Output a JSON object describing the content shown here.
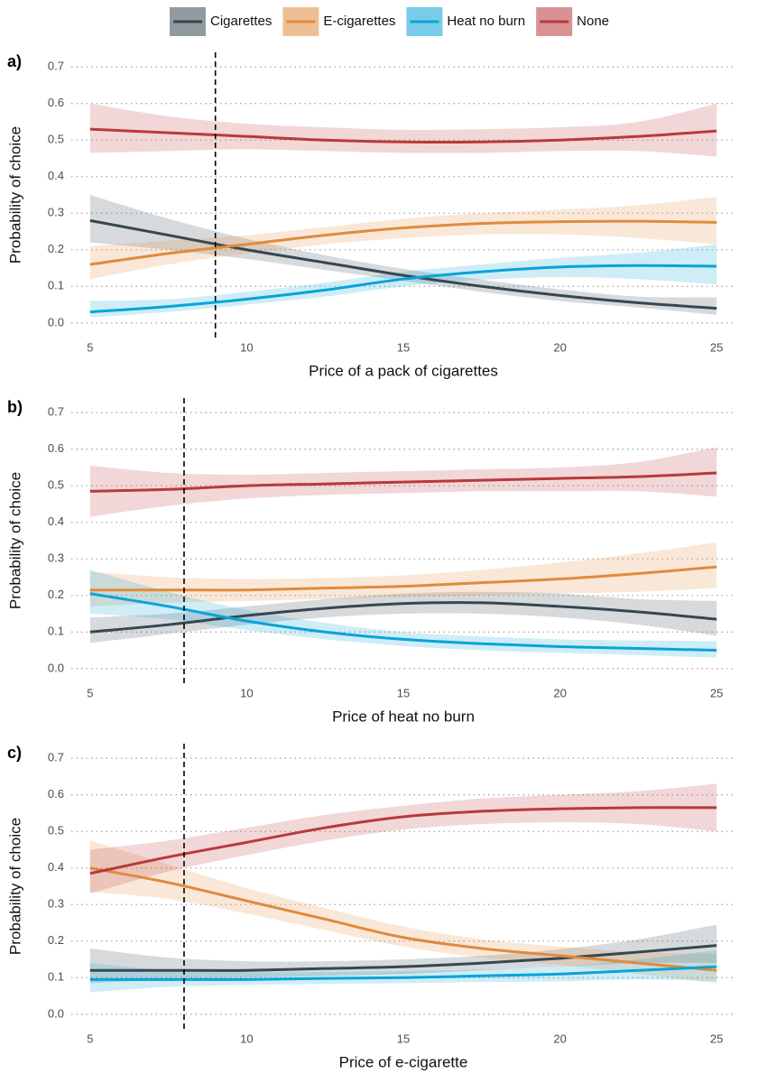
{
  "legend": {
    "position": "top",
    "items": [
      {
        "name": "Cigarettes",
        "color": "#37474f"
      },
      {
        "name": "E-cigarettes",
        "color": "#e08a3c"
      },
      {
        "name": "Heat no burn",
        "color": "#0aa3d8"
      },
      {
        "name": "None",
        "color": "#b8393b"
      }
    ]
  },
  "chart_data": [
    {
      "type": "line",
      "panel_label": "a)",
      "xlabel": "Price of a pack of cigarettes",
      "ylabel": "Probability of choice",
      "x": [
        5,
        7.5,
        10,
        12.5,
        15,
        17.5,
        20,
        22.5,
        25
      ],
      "xlim": [
        4.4,
        25.6
      ],
      "xticks": [
        5,
        10,
        15,
        20,
        25
      ],
      "ylim": [
        -0.035,
        0.735
      ],
      "yticks": [
        {
          "value": 0,
          "label": "0.0"
        },
        0.1,
        0.2,
        0.3,
        0.4,
        0.5,
        0.6,
        0.7
      ],
      "grid": true,
      "vline": 9,
      "series": [
        {
          "values": [
            0.28,
            0.24,
            0.2,
            0.165,
            0.13,
            0.1,
            0.075,
            0.055,
            0.04
          ],
          "lower": [
            0.22,
            0.2,
            0.175,
            0.145,
            0.115,
            0.085,
            0.06,
            0.042,
            0.022
          ],
          "upper": [
            0.35,
            0.285,
            0.23,
            0.185,
            0.148,
            0.118,
            0.092,
            0.072,
            0.07
          ]
        },
        {
          "values": [
            0.16,
            0.19,
            0.215,
            0.24,
            0.26,
            0.272,
            0.277,
            0.278,
            0.275
          ],
          "lower": [
            0.12,
            0.16,
            0.19,
            0.215,
            0.232,
            0.242,
            0.242,
            0.232,
            0.215
          ],
          "upper": [
            0.21,
            0.225,
            0.24,
            0.262,
            0.285,
            0.3,
            0.31,
            0.322,
            0.345
          ]
        },
        {
          "values": [
            0.03,
            0.045,
            0.065,
            0.09,
            0.12,
            0.14,
            0.153,
            0.157,
            0.155
          ],
          "lower": [
            0.015,
            0.03,
            0.05,
            0.072,
            0.1,
            0.118,
            0.125,
            0.12,
            0.105
          ],
          "upper": [
            0.06,
            0.065,
            0.085,
            0.11,
            0.14,
            0.16,
            0.178,
            0.192,
            0.215
          ]
        },
        {
          "values": [
            0.53,
            0.52,
            0.51,
            0.5,
            0.495,
            0.495,
            0.5,
            0.51,
            0.525
          ],
          "lower": [
            0.465,
            0.47,
            0.475,
            0.47,
            0.465,
            0.465,
            0.47,
            0.47,
            0.455
          ],
          "upper": [
            0.6,
            0.565,
            0.545,
            0.535,
            0.528,
            0.53,
            0.535,
            0.55,
            0.6
          ]
        }
      ]
    },
    {
      "type": "line",
      "panel_label": "b)",
      "xlabel": "Price of heat no burn",
      "ylabel": "Probability of choice",
      "x": [
        5,
        7.5,
        10,
        12.5,
        15,
        17.5,
        20,
        22.5,
        25
      ],
      "xlim": [
        4.4,
        25.6
      ],
      "xticks": [
        5,
        10,
        15,
        20,
        25
      ],
      "ylim": [
        -0.035,
        0.735
      ],
      "yticks": [
        {
          "value": 0,
          "label": "0.0"
        },
        0.1,
        0.2,
        0.3,
        0.4,
        0.5,
        0.6,
        0.7
      ],
      "grid": true,
      "vline": 8,
      "series": [
        {
          "values": [
            0.1,
            0.12,
            0.145,
            0.165,
            0.178,
            0.18,
            0.17,
            0.155,
            0.135
          ],
          "lower": [
            0.07,
            0.095,
            0.12,
            0.14,
            0.15,
            0.15,
            0.14,
            0.12,
            0.09
          ],
          "upper": [
            0.14,
            0.15,
            0.17,
            0.19,
            0.205,
            0.21,
            0.205,
            0.19,
            0.185
          ]
        },
        {
          "values": [
            0.215,
            0.215,
            0.215,
            0.22,
            0.225,
            0.235,
            0.245,
            0.26,
            0.278
          ],
          "lower": [
            0.17,
            0.18,
            0.185,
            0.19,
            0.195,
            0.2,
            0.205,
            0.21,
            0.22
          ],
          "upper": [
            0.265,
            0.25,
            0.245,
            0.248,
            0.255,
            0.27,
            0.29,
            0.315,
            0.345
          ]
        },
        {
          "values": [
            0.205,
            0.17,
            0.13,
            0.1,
            0.08,
            0.068,
            0.06,
            0.055,
            0.05
          ],
          "lower": [
            0.15,
            0.135,
            0.105,
            0.08,
            0.062,
            0.05,
            0.043,
            0.037,
            0.03
          ],
          "upper": [
            0.27,
            0.21,
            0.16,
            0.125,
            0.1,
            0.088,
            0.08,
            0.077,
            0.075
          ]
        },
        {
          "values": [
            0.485,
            0.49,
            0.5,
            0.505,
            0.51,
            0.515,
            0.52,
            0.525,
            0.535
          ],
          "lower": [
            0.415,
            0.445,
            0.465,
            0.475,
            0.48,
            0.485,
            0.485,
            0.485,
            0.47
          ],
          "upper": [
            0.555,
            0.535,
            0.53,
            0.535,
            0.54,
            0.545,
            0.55,
            0.565,
            0.605
          ]
        }
      ]
    },
    {
      "type": "line",
      "panel_label": "c)",
      "xlabel": "Price of e-cigarette",
      "ylabel": "Probability of choice",
      "x": [
        5,
        7.5,
        10,
        12.5,
        15,
        17.5,
        20,
        22.5,
        25
      ],
      "xlim": [
        4.4,
        25.6
      ],
      "xticks": [
        5,
        10,
        15,
        20,
        25
      ],
      "ylim": [
        -0.035,
        0.735
      ],
      "yticks": [
        {
          "value": 0,
          "label": "0.0"
        },
        0.1,
        0.2,
        0.3,
        0.4,
        0.5,
        0.6,
        0.7
      ],
      "grid": true,
      "vline": 8,
      "series": [
        {
          "values": [
            0.12,
            0.12,
            0.12,
            0.125,
            0.13,
            0.14,
            0.153,
            0.17,
            0.188
          ],
          "lower": [
            0.085,
            0.095,
            0.1,
            0.105,
            0.11,
            0.12,
            0.13,
            0.14,
            0.14
          ],
          "upper": [
            0.18,
            0.155,
            0.145,
            0.145,
            0.15,
            0.16,
            0.178,
            0.205,
            0.245
          ]
        },
        {
          "values": [
            0.4,
            0.36,
            0.31,
            0.26,
            0.21,
            0.18,
            0.16,
            0.14,
            0.12
          ],
          "lower": [
            0.335,
            0.315,
            0.275,
            0.23,
            0.185,
            0.155,
            0.135,
            0.11,
            0.085
          ],
          "upper": [
            0.475,
            0.41,
            0.345,
            0.29,
            0.24,
            0.205,
            0.185,
            0.17,
            0.165
          ]
        },
        {
          "values": [
            0.095,
            0.095,
            0.095,
            0.098,
            0.1,
            0.105,
            0.11,
            0.12,
            0.13
          ],
          "lower": [
            0.06,
            0.075,
            0.08,
            0.083,
            0.085,
            0.088,
            0.09,
            0.095,
            0.09
          ],
          "upper": [
            0.14,
            0.12,
            0.115,
            0.115,
            0.118,
            0.122,
            0.13,
            0.15,
            0.175
          ]
        },
        {
          "values": [
            0.385,
            0.43,
            0.47,
            0.51,
            0.54,
            0.555,
            0.562,
            0.565,
            0.565
          ],
          "lower": [
            0.33,
            0.39,
            0.435,
            0.475,
            0.505,
            0.52,
            0.525,
            0.52,
            0.5
          ],
          "upper": [
            0.45,
            0.475,
            0.51,
            0.545,
            0.57,
            0.59,
            0.6,
            0.61,
            0.63
          ]
        }
      ]
    }
  ]
}
